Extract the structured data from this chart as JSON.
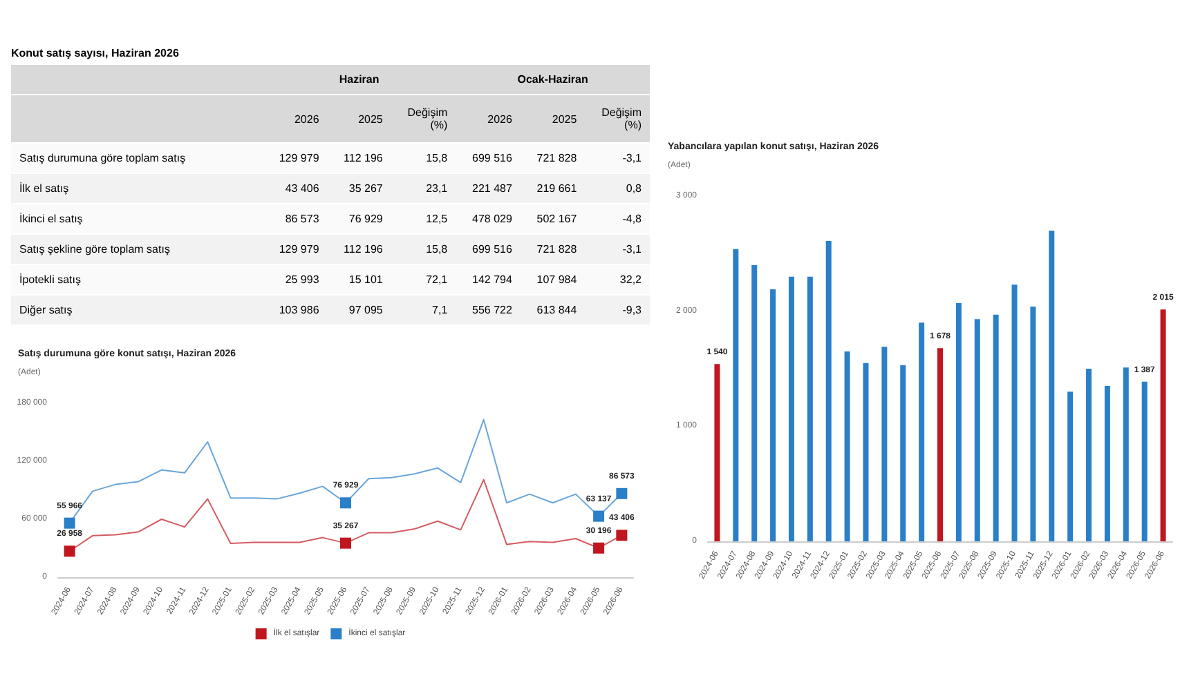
{
  "chart_data": [
    {
      "type": "other",
      "title": "Konut satış sayısı, Haziran 2026",
      "annotations": [
        "Haziran",
        "Ocak-Haziran"
      ],
      "categories": [
        "2026",
        "2025",
        "Değişim\n(%)",
        "2026",
        "2025",
        "Değişim\n(%)"
      ],
      "y_categories": [
        "Satış durumuna göre toplam satış",
        "İlk el satış",
        "İkinci el satış",
        "Satış şekline göre toplam satış",
        "İpotekli satış",
        "Diğer satış"
      ],
      "cell_labels": [
        [
          "129 979",
          "112 196",
          "15,8",
          "699 516",
          "721 828",
          "-3,1"
        ],
        [
          "43 406",
          "35 267",
          "23,1",
          "221 487",
          "219 661",
          "0,8"
        ],
        [
          "86 573",
          "76 929",
          "12,5",
          "478 029",
          "502 167",
          "-4,8"
        ],
        [
          "129 979",
          "112 196",
          "15,8",
          "699 516",
          "721 828",
          "-3,1"
        ],
        [
          "25 993",
          "15 101",
          "72,1",
          "142 794",
          "107 984",
          "32,2"
        ],
        [
          "103 986",
          "97 095",
          "7,1",
          "556 722",
          "613 844",
          "-9,3"
        ]
      ]
    },
    {
      "type": "line",
      "title": "Satış durumuna göre konut satışı, Haziran 2026",
      "ylabel": "(Adet)",
      "categories": [
        "2024-06",
        "2024-07",
        "2024-08",
        "2024-09",
        "2024-10",
        "2024-11",
        "2024-12",
        "2025-01",
        "2025-02",
        "2025-03",
        "2025-04",
        "2025-05",
        "2025-06",
        "2025-07",
        "2025-08",
        "2025-09",
        "2025-10",
        "2025-11",
        "2025-12",
        "2026-01",
        "2026-02",
        "2026-03",
        "2026-04",
        "2026-05",
        "2026-06"
      ],
      "series": [
        {
          "name": "İlk el satışlar",
          "color": "#c0161f",
          "values": [
            26958,
            43000,
            44000,
            47000,
            60000,
            52000,
            81000,
            35000,
            36000,
            36000,
            36000,
            41000,
            35267,
            46000,
            46000,
            50000,
            58000,
            49000,
            101000,
            34000,
            37000,
            36000,
            40000,
            30196,
            43406
          ],
          "value_labels": [
            "26 958",
            null,
            null,
            null,
            null,
            null,
            null,
            null,
            null,
            null,
            null,
            null,
            "35 267",
            null,
            null,
            null,
            null,
            null,
            null,
            null,
            null,
            null,
            null,
            "30 196",
            "43 406"
          ]
        },
        {
          "name": "İkinci el satışlar",
          "color": "#2a7fc9",
          "values": [
            55966,
            89000,
            96000,
            99000,
            111000,
            108000,
            140000,
            82000,
            82000,
            81000,
            87000,
            94000,
            76929,
            102000,
            103000,
            107000,
            113000,
            98000,
            163000,
            77000,
            86000,
            77000,
            86000,
            63137,
            86573
          ],
          "value_labels": [
            "55 966",
            null,
            null,
            null,
            null,
            null,
            null,
            null,
            null,
            null,
            null,
            null,
            "76 929",
            null,
            null,
            null,
            null,
            null,
            null,
            null,
            null,
            null,
            null,
            "63 137",
            "86 573"
          ]
        }
      ],
      "ylim": [
        0,
        180000
      ],
      "yticks": [
        0,
        {
          "value": 60000,
          "label": "60 000"
        },
        {
          "value": 120000,
          "label": "120 000"
        },
        {
          "value": 180000,
          "label": "180 000"
        }
      ],
      "legend": "bottom",
      "grid": false
    },
    {
      "type": "bar",
      "title": "Yabancılara yapılan konut satışı, Haziran 2026",
      "ylabel": "(Adet)",
      "categories": [
        "2024-06",
        "2024-07",
        "2024-08",
        "2024-09",
        "2024-10",
        "2024-11",
        "2024-12",
        "2025-01",
        "2025-02",
        "2025-03",
        "2025-04",
        "2025-05",
        "2025-06",
        "2025-07",
        "2025-08",
        "2025-09",
        "2025-10",
        "2025-11",
        "2025-12",
        "2026-01",
        "2026-02",
        "2026-03",
        "2026-04",
        "2026-05",
        "2026-06"
      ],
      "values": [
        1540,
        2540,
        2400,
        2190,
        2300,
        2300,
        2610,
        1650,
        1550,
        1690,
        1530,
        1900,
        1678,
        2070,
        1930,
        1970,
        2230,
        2040,
        2700,
        1300,
        1500,
        1350,
        1510,
        1387,
        2015
      ],
      "value_labels": [
        "1 540",
        null,
        null,
        null,
        null,
        null,
        null,
        null,
        null,
        null,
        null,
        null,
        "1 678",
        null,
        null,
        null,
        null,
        null,
        null,
        null,
        null,
        null,
        null,
        "1 387",
        "2 015"
      ],
      "colors": [
        "#c0161f",
        "#2a7fc9",
        "#2a7fc9",
        "#2a7fc9",
        "#2a7fc9",
        "#2a7fc9",
        "#2a7fc9",
        "#2a7fc9",
        "#2a7fc9",
        "#2a7fc9",
        "#2a7fc9",
        "#2a7fc9",
        "#c0161f",
        "#2a7fc9",
        "#2a7fc9",
        "#2a7fc9",
        "#2a7fc9",
        "#2a7fc9",
        "#2a7fc9",
        "#2a7fc9",
        "#2a7fc9",
        "#2a7fc9",
        "#2a7fc9",
        "#2a7fc9",
        "#c0161f"
      ],
      "ylim": [
        0,
        3000
      ],
      "yticks": [
        0,
        {
          "value": 1000,
          "label": "1 000"
        },
        {
          "value": 2000,
          "label": "2 000"
        },
        {
          "value": 3000,
          "label": "3 000"
        }
      ],
      "grid": false
    }
  ]
}
